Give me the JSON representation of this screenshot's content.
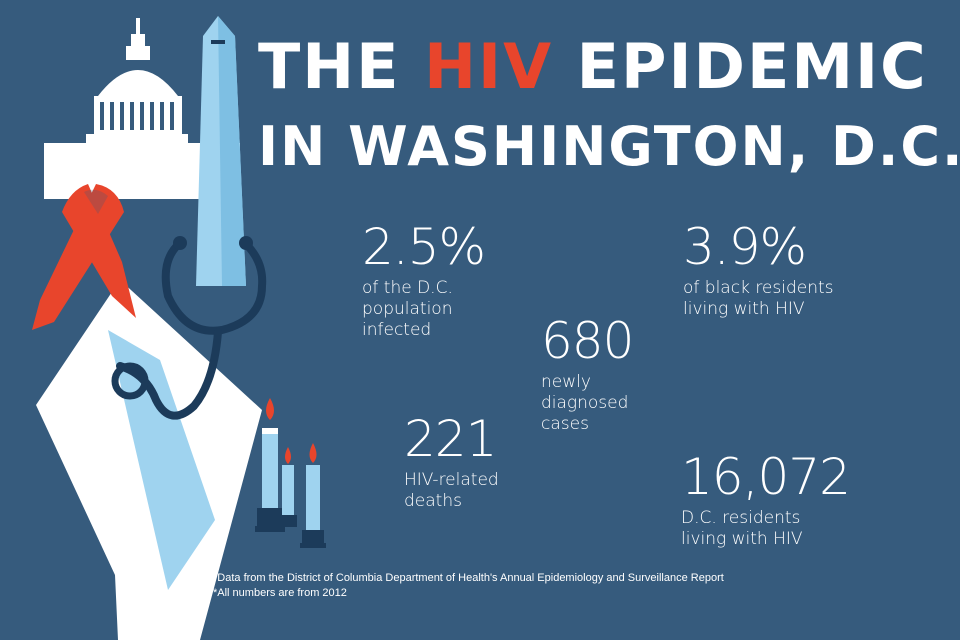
{
  "title": {
    "line1_before": "THE ",
    "line1_highlight": "HIV",
    "line1_after": " EPIDEMIC",
    "line2": "IN WASHINGTON, D.C."
  },
  "stats": [
    {
      "number": "2.5%",
      "description": "of the D.C.\npopulation\ninfected"
    },
    {
      "number": "3.9%",
      "description": "of black residents\nliving with HIV"
    },
    {
      "number": "680",
      "description": "newly\ndiagnosed\ncases"
    },
    {
      "number": "221",
      "description": "HIV-related\ndeaths"
    },
    {
      "number": "16,072",
      "description": "D.C. residents\nliving with HIV"
    }
  ],
  "footnotes": [
    "*Data from the District of Columbia Department of Health's Annual Epidemiology and Surveillance Report",
    "*All numbers are from 2012"
  ],
  "colors": {
    "background": "#365b7d",
    "accent_red": "#e8452c",
    "light_blue": "#9fd3ef",
    "dark_navy": "#1c3b5a",
    "white": "#ffffff"
  },
  "icons": [
    "capitol-dome-icon",
    "washington-monument-icon",
    "red-ribbon-icon",
    "stethoscope-icon",
    "dc-map-icon",
    "candle-icon"
  ]
}
